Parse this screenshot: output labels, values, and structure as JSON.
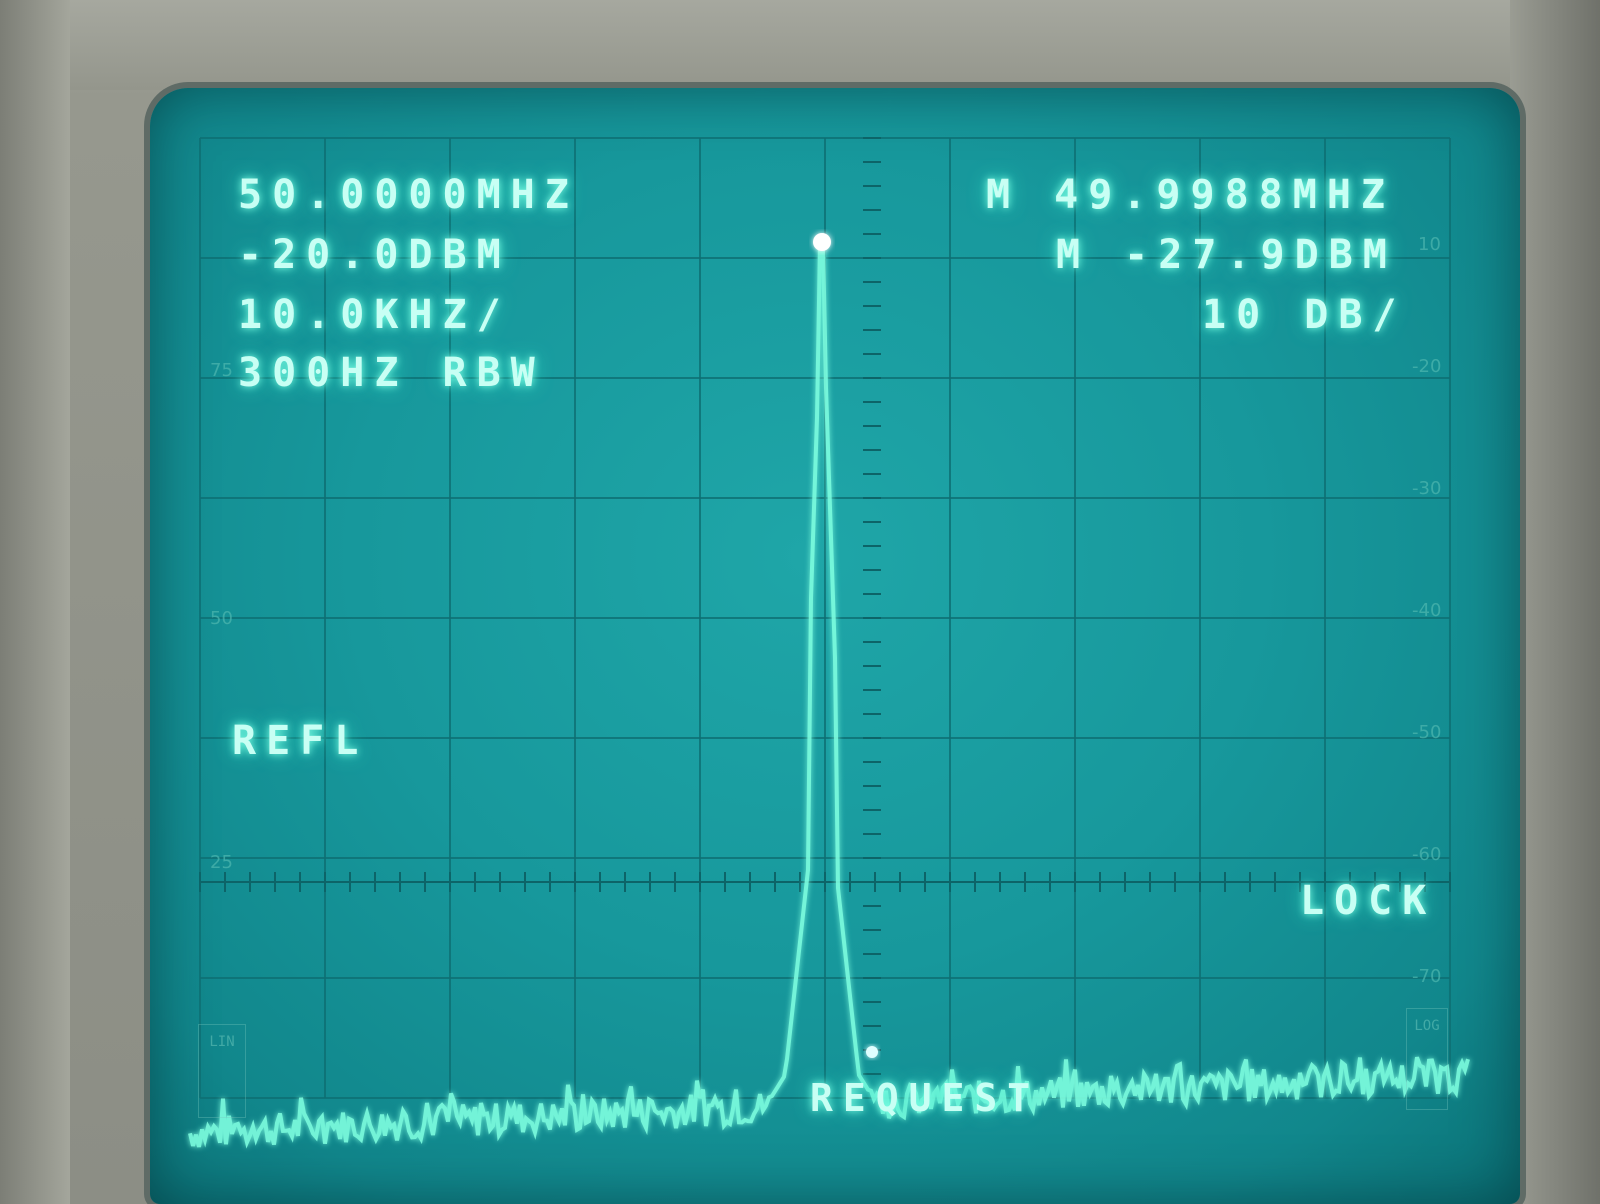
{
  "readouts": {
    "center_freq": "50.0000MHZ",
    "ref_level": "-20.0DBM",
    "span_per_div": "10.0KHZ/",
    "rbw": "300HZ RBW",
    "marker_freq": "M 49.9988MHZ",
    "marker_level": "M -27.9DBM",
    "scale_per_div": "10 DB/",
    "refl": "REFL",
    "lock": "LOCK",
    "request": "REQUEST"
  },
  "graticule_scale": {
    "right": [
      "10",
      "-20",
      "-30",
      "-40",
      "-50",
      "-60",
      "-70"
    ],
    "left": [
      "75",
      "50",
      "25"
    ],
    "left_box": "LIN",
    "right_box": "LOG"
  },
  "colors": {
    "phosphor": "#7effe0",
    "screen": "#17989c"
  }
}
